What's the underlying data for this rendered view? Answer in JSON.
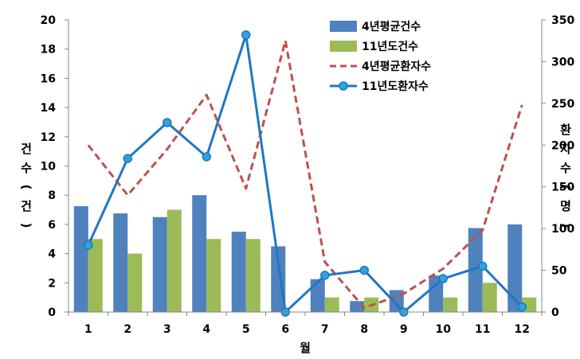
{
  "chart_data": {
    "type": "bar",
    "categories": [
      "1",
      "2",
      "3",
      "4",
      "5",
      "6",
      "7",
      "8",
      "9",
      "10",
      "11",
      "12"
    ],
    "xlabel": "월",
    "ylabel": "건수(건)",
    "y2label": "환자수(명)",
    "ylim": [
      0,
      20
    ],
    "y2lim": [
      0,
      350
    ],
    "yticks": [
      "0",
      "2",
      "4",
      "6",
      "8",
      "10",
      "12",
      "14",
      "16",
      "18",
      "20"
    ],
    "y2ticks": [
      "0",
      "50",
      "100",
      "150",
      "200",
      "250",
      "300",
      "350"
    ],
    "grid": false,
    "legend_position": "top-right",
    "series": [
      {
        "name": "4년평균건수",
        "kind": "bar",
        "axis": "left",
        "color": "#4F81BD",
        "values": [
          7.25,
          6.75,
          6.5,
          8.0,
          5.5,
          4.5,
          2.25,
          0.75,
          1.5,
          2.5,
          5.75,
          6.0
        ]
      },
      {
        "name": "11년도건수",
        "kind": "bar",
        "axis": "left",
        "color": "#9BBB59",
        "values": [
          5,
          4,
          7,
          5,
          5,
          0,
          1,
          1,
          0,
          1,
          2,
          1
        ]
      },
      {
        "name": "4년평균환자수",
        "kind": "line",
        "style": "dashed",
        "axis": "right",
        "color": "#C0504D",
        "values": [
          200,
          140,
          195,
          260,
          148,
          325,
          60,
          5,
          22,
          52,
          98,
          248
        ]
      },
      {
        "name": "11년도환자수",
        "kind": "line",
        "style": "solid-marker",
        "axis": "right",
        "color": "#1F77C0",
        "values": [
          80,
          184,
          227,
          186,
          332,
          0,
          44,
          50,
          0,
          40,
          55,
          6
        ]
      }
    ]
  }
}
